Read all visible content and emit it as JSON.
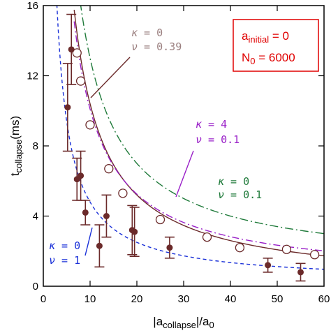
{
  "chart_data": {
    "type": "scatter",
    "title": "",
    "xlabel": {
      "main": "|a",
      "sub": "collapse",
      "mid": "|/a",
      "sub2": "0"
    },
    "ylabel": {
      "main": "t",
      "sub": "collapse",
      "unit": "(ms)"
    },
    "xlim": [
      0,
      60
    ],
    "ylim": [
      0,
      16
    ],
    "xticks": [
      0,
      10,
      20,
      30,
      40,
      50,
      60
    ],
    "yticks": [
      0,
      4,
      8,
      12,
      16
    ],
    "xtick_labels": [
      "0",
      "10",
      "20",
      "30",
      "40",
      "50",
      "60"
    ],
    "ytick_labels": [
      "0",
      "4",
      "8",
      "12",
      "16"
    ],
    "grid": false,
    "info_box": {
      "line1": {
        "main": "a",
        "sub": "initial",
        "rest": " = 0"
      },
      "line2": {
        "main": "N",
        "sub": "0",
        "rest": " = 6000"
      },
      "color": "#e00000"
    },
    "experimental": {
      "color": "#6b2a2a",
      "points": [
        {
          "x": 5.2,
          "y": 10.2,
          "err": 2.5
        },
        {
          "x": 6.0,
          "y": 13.5,
          "err": 2.0
        },
        {
          "x": 7.2,
          "y": 6.1,
          "err": 1.2
        },
        {
          "x": 8.0,
          "y": 6.3,
          "err": 1.4
        },
        {
          "x": 9.0,
          "y": 4.2,
          "err": 0.7
        },
        {
          "x": 12.0,
          "y": 2.3,
          "err": 1.2
        },
        {
          "x": 13.5,
          "y": 4.0,
          "err": 1.2
        },
        {
          "x": 19.0,
          "y": 3.2,
          "err": 1.4
        },
        {
          "x": 19.5,
          "y": 3.1,
          "err": 1.4
        },
        {
          "x": 27.0,
          "y": 2.2,
          "err": 0.6
        },
        {
          "x": 48.0,
          "y": 1.2,
          "err": 0.4
        },
        {
          "x": 55.0,
          "y": 0.8,
          "err": 0.5
        }
      ]
    },
    "simulation": {
      "color": "#6b2a2a",
      "points": [
        {
          "x": 7.2,
          "y": 13.3
        },
        {
          "x": 8.0,
          "y": 11.7
        },
        {
          "x": 10.0,
          "y": 9.2
        },
        {
          "x": 14.0,
          "y": 6.7
        },
        {
          "x": 17.0,
          "y": 5.3
        },
        {
          "x": 25.0,
          "y": 3.8
        },
        {
          "x": 35.0,
          "y": 2.8
        },
        {
          "x": 42.0,
          "y": 2.2
        },
        {
          "x": 52.0,
          "y": 2.1
        },
        {
          "x": 58.0,
          "y": 1.8
        }
      ]
    },
    "curves": [
      {
        "kappa": "0",
        "nu": "0.39",
        "K": 104,
        "x0": 0,
        "c": 0,
        "color": "#6b2a2a",
        "dash": "",
        "xmin": 6.6
      },
      {
        "kappa": "4",
        "nu": "0.1",
        "K": 97,
        "x0": 0,
        "c": 0.4,
        "color": "#9a20c8",
        "dash": "10 4 2 4",
        "xmin": 6.6
      },
      {
        "kappa": "0",
        "nu": "0.1",
        "K": 120,
        "x0": 0,
        "c": 1,
        "color": "#1f7a3a",
        "dash": "12 4 2 4",
        "xmin": 7.9
      },
      {
        "kappa": "0",
        "nu": "1",
        "K": 46,
        "x0": 0,
        "c": 0.2,
        "color": "#1a30d8",
        "dash": "5 4",
        "xmin": 2.9
      }
    ],
    "annotations": [
      {
        "curve": 0,
        "kappa_label": "κ",
        "eq": " = ",
        "nu_label": "ν",
        "color": "#9b8080"
      },
      {
        "curve": 1,
        "kappa_label": "κ",
        "eq": " = ",
        "nu_label": "ν",
        "color": "#9a20c8"
      },
      {
        "curve": 2,
        "kappa_label": "κ",
        "eq": " = ",
        "nu_label": "ν",
        "color": "#1f7a3a"
      },
      {
        "curve": 3,
        "kappa_label": "κ",
        "eq": " = ",
        "nu_label": "ν",
        "color": "#1a30d8"
      }
    ]
  }
}
